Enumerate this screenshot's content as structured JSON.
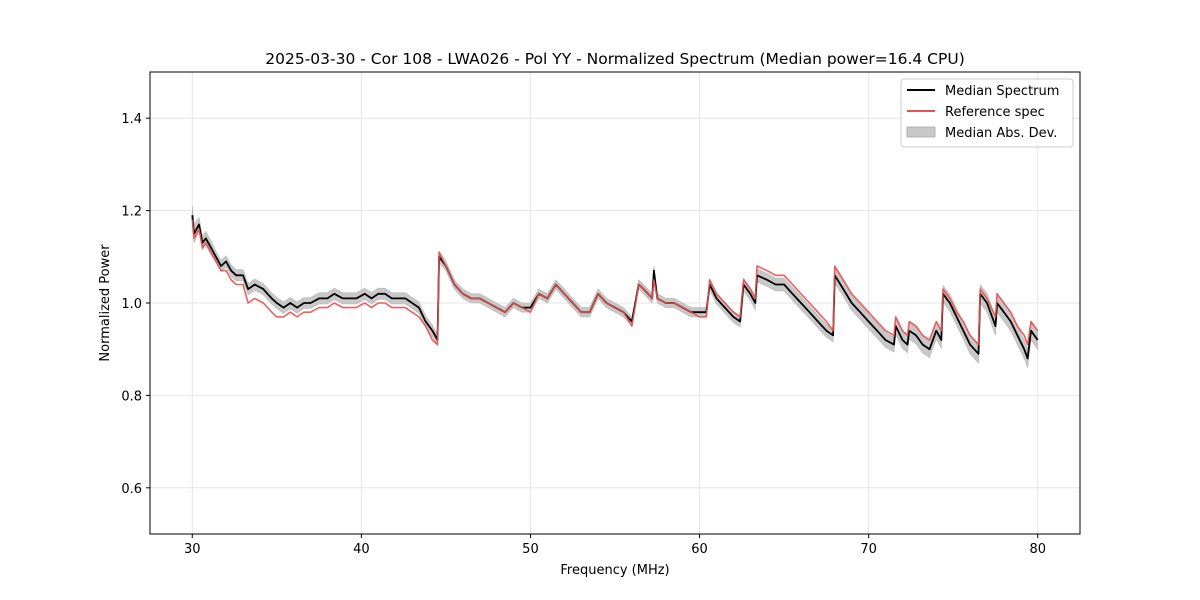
{
  "chart_data": {
    "type": "line",
    "title": "2025-03-30 - Cor 108 - LWA026 - Pol YY - Normalized Spectrum (Median power=16.4 CPU)",
    "xlabel": "Frequency (MHz)",
    "ylabel": "Normalized Power",
    "xlim": [
      27.5,
      82.5
    ],
    "ylim": [
      0.5,
      1.5
    ],
    "xticks": [
      30,
      40,
      50,
      60,
      70,
      80
    ],
    "xtick_labels": [
      "30",
      "40",
      "50",
      "60",
      "70",
      "80"
    ],
    "yticks": [
      0.6,
      0.8,
      1.0,
      1.2,
      1.4
    ],
    "ytick_labels": [
      "0.6",
      "0.8",
      "1.0",
      "1.2",
      "1.4"
    ],
    "grid": true,
    "legend_position": "top-right",
    "legend": [
      {
        "label": "Median Spectrum",
        "kind": "line",
        "color": "#000000"
      },
      {
        "label": "Reference spec",
        "kind": "line",
        "color": "#e8514f"
      },
      {
        "label": "Median Abs. Dev.",
        "kind": "band",
        "color": "#c8c8c8"
      }
    ],
    "series": [
      {
        "name": "Median Spectrum",
        "color": "#000000",
        "x": [
          30.0,
          30.1,
          30.4,
          30.6,
          30.8,
          31.1,
          31.4,
          31.7,
          32.0,
          32.3,
          32.6,
          33.0,
          33.3,
          33.7,
          34.2,
          34.7,
          35.0,
          35.4,
          35.8,
          36.2,
          36.6,
          37.0,
          37.5,
          38.0,
          38.4,
          38.9,
          39.3,
          39.7,
          40.2,
          40.6,
          41.0,
          41.4,
          41.8,
          42.2,
          42.6,
          43.0,
          43.4,
          43.8,
          44.2,
          44.5,
          44.6,
          45.0,
          45.5,
          46.0,
          46.5,
          47.0,
          47.5,
          48.0,
          48.5,
          49.0,
          49.5,
          50.0,
          50.5,
          51.0,
          51.5,
          52.0,
          52.5,
          53.0,
          53.5,
          54.0,
          54.5,
          55.0,
          55.5,
          56.0,
          56.4,
          56.7,
          57.2,
          57.3,
          57.5,
          58.0,
          58.5,
          59.0,
          59.5,
          60.0,
          60.4,
          60.6,
          61.0,
          61.5,
          62.0,
          62.4,
          62.6,
          63.0,
          63.3,
          63.4,
          64.0,
          64.5,
          65.0,
          65.5,
          66.0,
          66.5,
          67.0,
          67.5,
          67.9,
          68.0,
          68.5,
          69.0,
          69.5,
          70.0,
          70.5,
          71.0,
          71.5,
          71.6,
          72.0,
          72.3,
          72.4,
          72.8,
          73.2,
          73.6,
          74.0,
          74.3,
          74.4,
          74.8,
          75.2,
          75.6,
          76.0,
          76.5,
          76.6,
          77.0,
          77.5,
          77.6,
          78.0,
          78.4,
          78.8,
          79.2,
          79.4,
          79.6,
          79.8,
          80.0
        ],
        "values": [
          1.19,
          1.15,
          1.17,
          1.13,
          1.14,
          1.12,
          1.1,
          1.08,
          1.09,
          1.07,
          1.06,
          1.06,
          1.03,
          1.04,
          1.03,
          1.01,
          1.0,
          0.99,
          1.0,
          0.99,
          1.0,
          1.0,
          1.01,
          1.01,
          1.02,
          1.01,
          1.01,
          1.01,
          1.02,
          1.01,
          1.02,
          1.02,
          1.01,
          1.01,
          1.01,
          1.0,
          0.99,
          0.96,
          0.94,
          0.92,
          1.1,
          1.08,
          1.04,
          1.02,
          1.01,
          1.01,
          1.0,
          0.99,
          0.98,
          1.0,
          0.99,
          0.99,
          1.02,
          1.01,
          1.04,
          1.02,
          1.0,
          0.98,
          0.98,
          1.02,
          1.0,
          0.99,
          0.98,
          0.96,
          1.04,
          1.03,
          1.01,
          1.07,
          1.01,
          1.0,
          1.0,
          0.99,
          0.98,
          0.98,
          0.98,
          1.04,
          1.01,
          0.99,
          0.97,
          0.96,
          1.04,
          1.02,
          1.0,
          1.06,
          1.05,
          1.04,
          1.04,
          1.02,
          1.0,
          0.98,
          0.96,
          0.94,
          0.93,
          1.06,
          1.03,
          1.0,
          0.98,
          0.96,
          0.94,
          0.92,
          0.91,
          0.95,
          0.92,
          0.91,
          0.94,
          0.93,
          0.91,
          0.9,
          0.94,
          0.92,
          1.02,
          1.0,
          0.97,
          0.94,
          0.91,
          0.89,
          1.02,
          1.0,
          0.95,
          1.0,
          0.98,
          0.96,
          0.93,
          0.9,
          0.88,
          0.94,
          0.93,
          0.92
        ],
        "mad": [
          0.02,
          0.02,
          0.015,
          0.015,
          0.015,
          0.015,
          0.012,
          0.012,
          0.012,
          0.012,
          0.012,
          0.012,
          0.012,
          0.012,
          0.012,
          0.012,
          0.012,
          0.012,
          0.012,
          0.012,
          0.012,
          0.012,
          0.012,
          0.012,
          0.012,
          0.012,
          0.012,
          0.012,
          0.012,
          0.012,
          0.012,
          0.012,
          0.012,
          0.012,
          0.012,
          0.012,
          0.012,
          0.012,
          0.012,
          0.012,
          0.012,
          0.01,
          0.01,
          0.01,
          0.01,
          0.01,
          0.01,
          0.01,
          0.01,
          0.01,
          0.01,
          0.01,
          0.01,
          0.01,
          0.01,
          0.01,
          0.01,
          0.01,
          0.01,
          0.01,
          0.01,
          0.01,
          0.01,
          0.01,
          0.01,
          0.01,
          0.01,
          0.01,
          0.01,
          0.01,
          0.01,
          0.01,
          0.01,
          0.01,
          0.01,
          0.012,
          0.012,
          0.012,
          0.012,
          0.012,
          0.014,
          0.014,
          0.014,
          0.014,
          0.014,
          0.014,
          0.014,
          0.014,
          0.014,
          0.014,
          0.014,
          0.014,
          0.014,
          0.016,
          0.016,
          0.016,
          0.016,
          0.016,
          0.016,
          0.016,
          0.016,
          0.018,
          0.018,
          0.018,
          0.018,
          0.018,
          0.018,
          0.018,
          0.018,
          0.018,
          0.018,
          0.018,
          0.018,
          0.018,
          0.02,
          0.02,
          0.02,
          0.02,
          0.02,
          0.02,
          0.02,
          0.02,
          0.02,
          0.02,
          0.02,
          0.02,
          0.02,
          0.02
        ]
      },
      {
        "name": "Reference spec",
        "color": "#e8514f",
        "x": [
          30.0,
          30.1,
          30.4,
          30.6,
          30.8,
          31.1,
          31.4,
          31.7,
          32.0,
          32.3,
          32.6,
          33.0,
          33.3,
          33.7,
          34.2,
          34.7,
          35.0,
          35.4,
          35.8,
          36.2,
          36.6,
          37.0,
          37.5,
          38.0,
          38.4,
          38.9,
          39.3,
          39.7,
          40.2,
          40.6,
          41.0,
          41.4,
          41.8,
          42.2,
          42.6,
          43.0,
          43.4,
          43.8,
          44.2,
          44.5,
          44.6,
          45.0,
          45.5,
          46.0,
          46.5,
          47.0,
          47.5,
          48.0,
          48.5,
          49.0,
          49.5,
          50.0,
          50.5,
          51.0,
          51.5,
          52.0,
          52.5,
          53.0,
          53.5,
          54.0,
          54.5,
          55.0,
          55.5,
          56.0,
          56.4,
          56.7,
          57.2,
          57.3,
          57.5,
          58.0,
          58.5,
          59.0,
          59.5,
          60.0,
          60.4,
          60.6,
          61.0,
          61.5,
          62.0,
          62.4,
          62.6,
          63.0,
          63.3,
          63.4,
          64.0,
          64.5,
          65.0,
          65.5,
          66.0,
          66.5,
          67.0,
          67.5,
          67.9,
          68.0,
          68.5,
          69.0,
          69.5,
          70.0,
          70.5,
          71.0,
          71.5,
          71.6,
          72.0,
          72.3,
          72.4,
          72.8,
          73.2,
          73.6,
          74.0,
          74.3,
          74.4,
          74.8,
          75.2,
          75.6,
          76.0,
          76.5,
          76.6,
          77.0,
          77.5,
          77.6,
          78.0,
          78.4,
          78.8,
          79.2,
          79.4,
          79.6,
          79.8,
          80.0
        ],
        "values": [
          1.18,
          1.14,
          1.16,
          1.12,
          1.13,
          1.11,
          1.09,
          1.07,
          1.07,
          1.05,
          1.04,
          1.04,
          1.0,
          1.01,
          1.0,
          0.98,
          0.97,
          0.97,
          0.98,
          0.97,
          0.98,
          0.98,
          0.99,
          0.99,
          1.0,
          0.99,
          0.99,
          0.99,
          1.0,
          0.99,
          1.0,
          1.0,
          0.99,
          0.99,
          0.99,
          0.98,
          0.97,
          0.95,
          0.92,
          0.91,
          1.11,
          1.08,
          1.04,
          1.02,
          1.01,
          1.01,
          1.0,
          0.99,
          0.98,
          1.0,
          0.99,
          0.98,
          1.02,
          1.01,
          1.04,
          1.02,
          1.0,
          0.98,
          0.98,
          1.02,
          1.0,
          0.99,
          0.98,
          0.95,
          1.04,
          1.03,
          1.01,
          1.05,
          1.01,
          1.0,
          1.0,
          0.99,
          0.98,
          0.97,
          0.97,
          1.05,
          1.02,
          1.0,
          0.98,
          0.97,
          1.05,
          1.03,
          1.01,
          1.08,
          1.07,
          1.06,
          1.06,
          1.04,
          1.02,
          1.0,
          0.98,
          0.96,
          0.94,
          1.08,
          1.05,
          1.02,
          1.0,
          0.98,
          0.96,
          0.94,
          0.93,
          0.97,
          0.94,
          0.93,
          0.96,
          0.95,
          0.93,
          0.92,
          0.96,
          0.94,
          1.03,
          1.01,
          0.98,
          0.96,
          0.93,
          0.91,
          1.03,
          1.01,
          0.97,
          1.02,
          1.0,
          0.98,
          0.95,
          0.93,
          0.91,
          0.96,
          0.95,
          0.94
        ]
      }
    ]
  }
}
